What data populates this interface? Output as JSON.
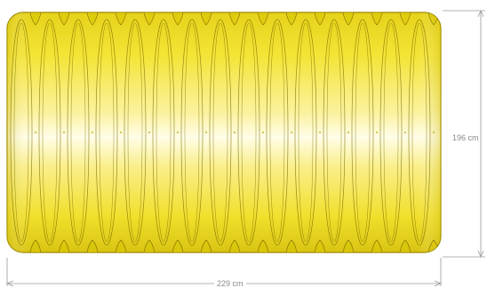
{
  "diagram": {
    "dimensions": {
      "height_label": "196 cm",
      "width_label": "229 cm"
    },
    "colors": {
      "body_yellow": "#f2e22a",
      "highlight": "#fffde6",
      "edge": "#b8a800",
      "outline": "#7a6a00",
      "dim_line": "#9a9a9a"
    }
  }
}
